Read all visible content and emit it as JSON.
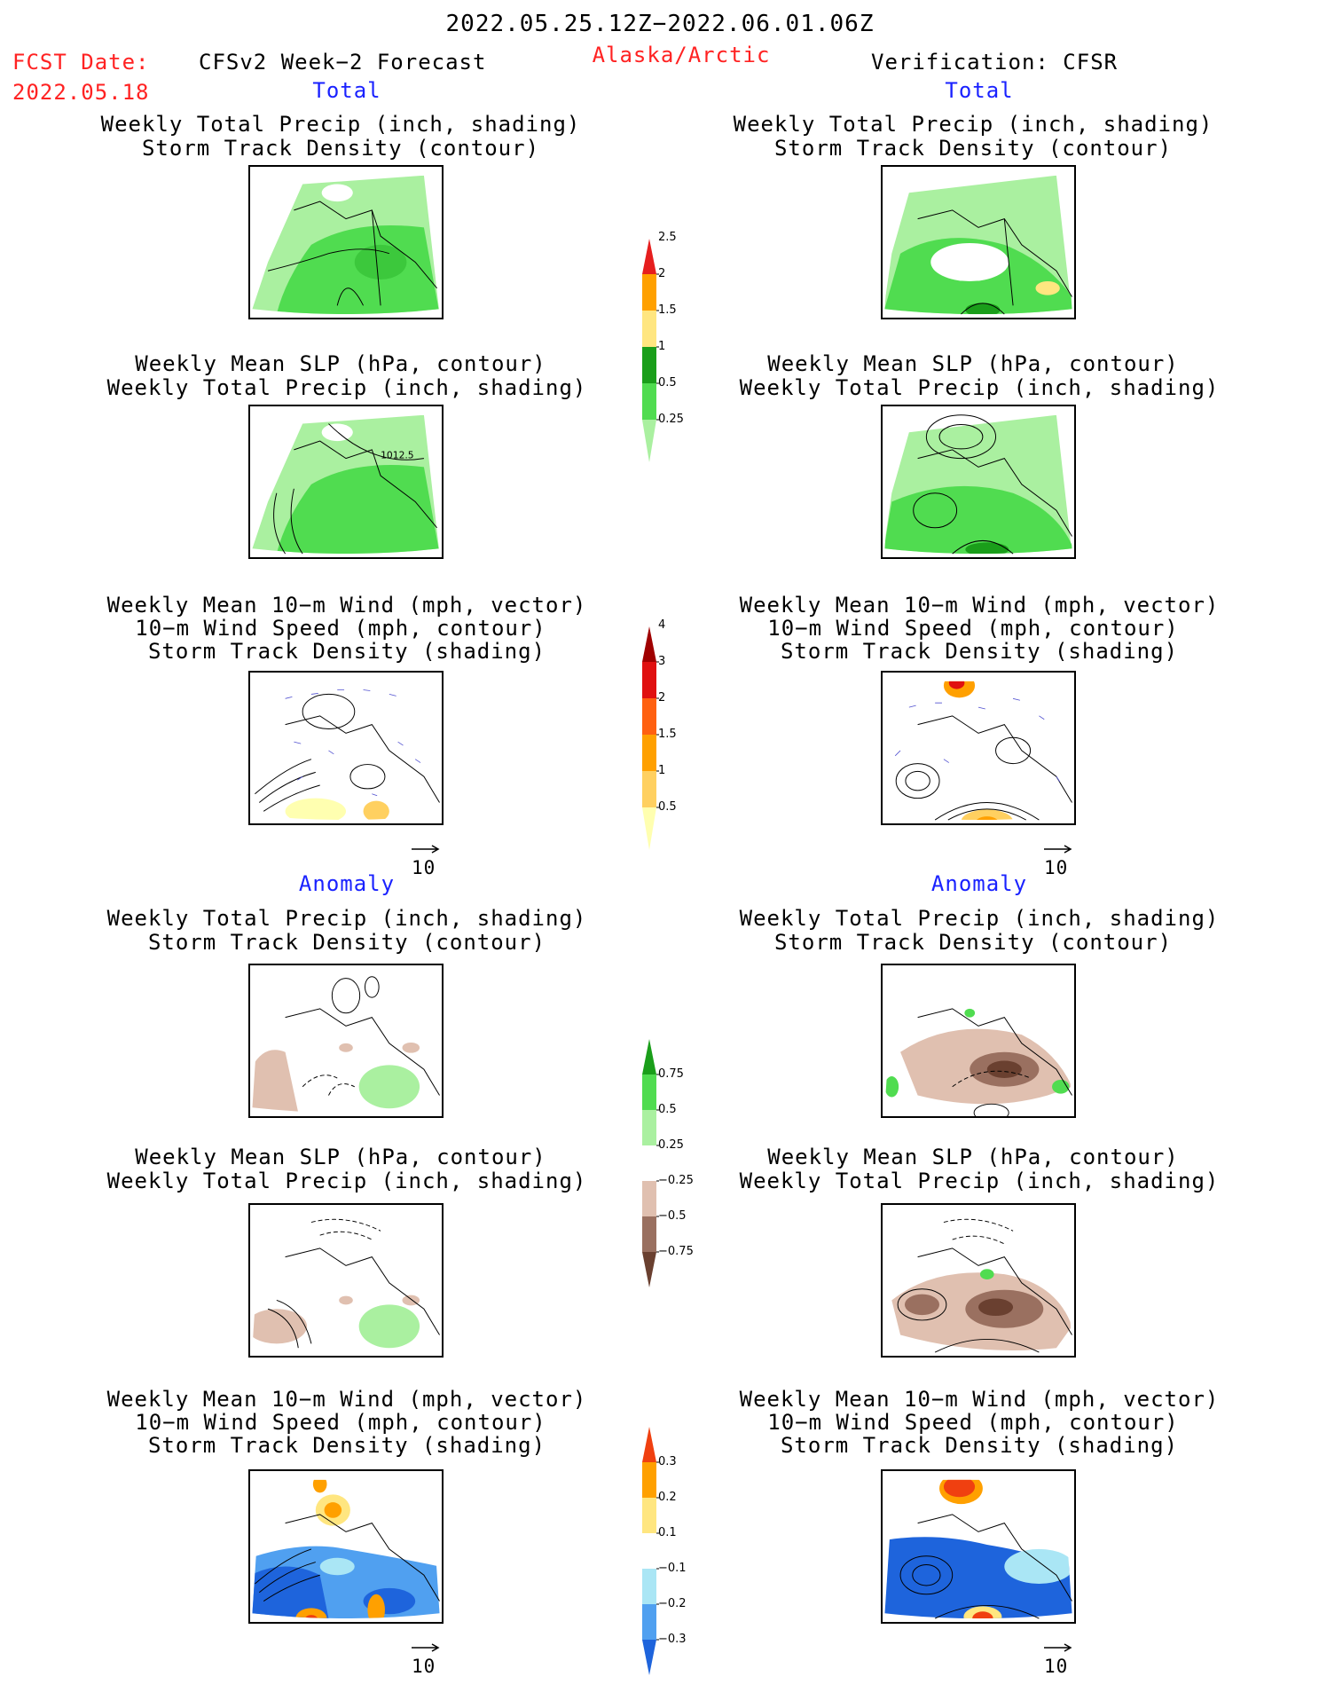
{
  "header": {
    "period": "2022.05.25.12Z−2022.06.01.06Z",
    "fcst_date_label": "FCST Date:",
    "fcst_date": "2022.05.18",
    "left_title": "CFSv2 Week−2 Forecast",
    "region": "Alaska/Arctic",
    "right_title": "Verification: CFSR"
  },
  "sections": {
    "total": "Total",
    "anomaly": "Anomaly"
  },
  "panel_titles": {
    "precip_track": [
      "Weekly Total Precip (inch, shading)",
      "Storm Track Density (contour)"
    ],
    "slp_precip": [
      "Weekly Mean SLP (hPa, contour)",
      "Weekly Total Precip (inch, shading)"
    ],
    "wind_track": [
      "Weekly Mean 10−m Wind (mph, vector)",
      "10−m Wind Speed (mph, contour)",
      "Storm Track Density (shading)"
    ]
  },
  "contour_label": "1012.5",
  "vector_reference": "10",
  "colorbars": {
    "total_precip": {
      "colors": [
        "#aaf0a0",
        "#50dc50",
        "#1a9e1a",
        "#ffe680",
        "#ffa000",
        "#e61e1e"
      ],
      "labels": [
        "0.25",
        "0.5",
        "1",
        "1.5",
        "2",
        "2.5"
      ]
    },
    "total_track": {
      "colors": [
        "#ffffb0",
        "#ffd060",
        "#ffa000",
        "#ff6010",
        "#e01010",
        "#a00000"
      ],
      "labels": [
        "0.5",
        "1",
        "1.5",
        "2",
        "3",
        "4"
      ]
    },
    "anom_precip": {
      "colors": [
        "#6a4030",
        "#9a7060",
        "#e0c0b0",
        "#ffffff",
        "#aaf0a0",
        "#50dc50",
        "#1a9e1a"
      ],
      "labels": [
        "−0.75",
        "−0.5",
        "−0.25",
        "0.25",
        "0.5",
        "0.75"
      ]
    },
    "anom_track": {
      "colors": [
        "#1e64dc",
        "#50a0f0",
        "#aae6f5",
        "#ffffff",
        "#ffe680",
        "#ffa000",
        "#f04010"
      ],
      "labels": [
        "−0.3",
        "−0.2",
        "−0.1",
        "0.1",
        "0.2",
        "0.3"
      ]
    }
  }
}
